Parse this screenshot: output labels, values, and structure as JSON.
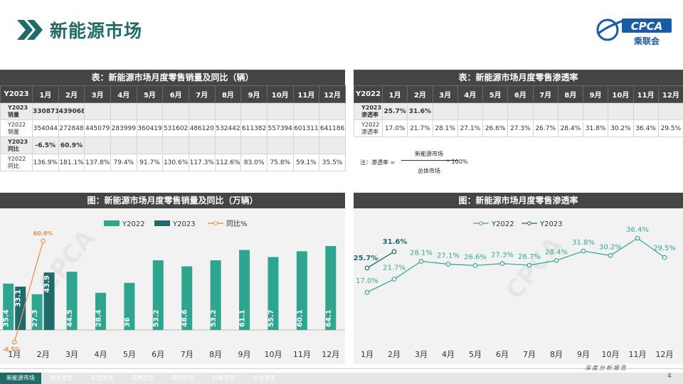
{
  "header": {
    "title": "新能源市场",
    "logo_text": "CPCA",
    "logo_sub": "乘联会"
  },
  "table_sales": {
    "title": "表：新能源市场月度零售销量及同比（辆）",
    "columns": [
      "Y2023",
      "1月",
      "2月",
      "3月",
      "4月",
      "5月",
      "6月",
      "7月",
      "8月",
      "9月",
      "10月",
      "11月",
      "12月"
    ],
    "rows": [
      {
        "label": "Y2023\n销量",
        "cells": [
          "330871",
          "439068",
          "",
          "",
          "",
          "",
          "",
          "",
          "",
          "",
          "",
          ""
        ],
        "bold": true
      },
      {
        "label": "Y2022\n销量",
        "cells": [
          "354044",
          "272848",
          "445079",
          "283999",
          "360419",
          "531602",
          "486120",
          "532442",
          "611382",
          "557394",
          "601311",
          "641186"
        ],
        "bold": false
      },
      {
        "label": "Y2023\n同比",
        "cells": [
          "-6.5%",
          "60.9%",
          "",
          "",
          "",
          "",
          "",
          "",
          "",
          "",
          "",
          ""
        ],
        "bold": true
      },
      {
        "label": "Y2022\n同比",
        "cells": [
          "136.9%",
          "181.1%",
          "137.8%",
          "79.4%",
          "91.7%",
          "130.6%",
          "117.3%",
          "112.6%",
          "83.0%",
          "75.8%",
          "59.1%",
          "35.5%"
        ],
        "bold": false
      }
    ]
  },
  "table_pen": {
    "title": "表：新能源市场月度零售渗透率",
    "columns": [
      "Y2022",
      "1月",
      "2月",
      "3月",
      "4月",
      "5月",
      "6月",
      "7月",
      "8月",
      "9月",
      "10月",
      "11月",
      "12月"
    ],
    "rows": [
      {
        "label": "Y2023\n渗透率",
        "cells": [
          "25.7%",
          "31.6%",
          "",
          "",
          "",
          "",
          "",
          "",
          "",
          "",
          "",
          ""
        ],
        "bold": true
      },
      {
        "label": "Y2022\n渗透率",
        "cells": [
          "17.0%",
          "21.7%",
          "28.1%",
          "27.1%",
          "26.6%",
          "27.3%",
          "26.7%",
          "28.4%",
          "31.8%",
          "30.2%",
          "36.4%",
          "29.5%"
        ],
        "bold": false
      }
    ],
    "note": {
      "prefix": "注：渗透率 =",
      "numerator": "新能源市场",
      "denominator": "总体市场",
      "suffix": "* 100%"
    }
  },
  "chart_data": [
    {
      "type": "bar",
      "title": "图：新能源市场月度零售销量及同比（万辆）",
      "categories": [
        "1月",
        "2月",
        "3月",
        "4月",
        "5月",
        "6月",
        "7月",
        "8月",
        "9月",
        "10月",
        "11月",
        "12月"
      ],
      "series": [
        {
          "name": "Y2022",
          "type": "bar",
          "color": "#2ea58f",
          "values": [
            35.4,
            27.3,
            44.5,
            28.4,
            36.0,
            53.2,
            48.6,
            53.2,
            61.1,
            55.7,
            60.1,
            64.1
          ]
        },
        {
          "name": "Y2023",
          "type": "bar",
          "color": "#1f6b6b",
          "values": [
            33.1,
            43.9,
            null,
            null,
            null,
            null,
            null,
            null,
            null,
            null,
            null,
            null
          ]
        },
        {
          "name": "同比%",
          "type": "line",
          "color": "#ef8f4b",
          "values": [
            -6.5,
            60.9,
            null,
            null,
            null,
            null,
            null,
            null,
            null,
            null,
            null,
            null
          ],
          "labels": [
            "-6.5%",
            "60.9%"
          ]
        }
      ],
      "legend": "top-center"
    },
    {
      "type": "line",
      "title": "图：新能源市场月度零售渗透率",
      "categories": [
        "1月",
        "2月",
        "3月",
        "4月",
        "5月",
        "6月",
        "7月",
        "8月",
        "9月",
        "10月",
        "11月",
        "12月"
      ],
      "series": [
        {
          "name": "Y2022",
          "color": "#36a898",
          "values": [
            17.0,
            21.7,
            28.1,
            27.1,
            26.6,
            27.3,
            26.7,
            28.4,
            31.8,
            30.2,
            36.4,
            29.5
          ],
          "labels": [
            "17.0%",
            "21.7%",
            "28.1%",
            "27.1%",
            "26.6%",
            "27.3%",
            "26.7%",
            "28.4%",
            "31.8%",
            "30.2%",
            "36.4%",
            "29.5%"
          ]
        },
        {
          "name": "Y2023",
          "color": "#1d6870",
          "values": [
            25.7,
            31.6,
            null,
            null,
            null,
            null,
            null,
            null,
            null,
            null,
            null,
            null
          ],
          "labels": [
            "25.7%",
            "31.6%"
          ]
        }
      ],
      "legend": "top-center"
    }
  ],
  "footer": {
    "tabs": [
      "新能源市场",
      "技术类型",
      "车型大类",
      "品牌定位",
      "级别定位",
      "价格定位",
      "企业竞争"
    ],
    "slogan": "深度分析报告",
    "page_number": "4"
  },
  "colors": {
    "accent": "#1f6b67",
    "bar2022": "#2ea58f",
    "bar2023": "#1f6b6b",
    "yoy": "#ef8f4b",
    "header_bg": "#454545"
  }
}
